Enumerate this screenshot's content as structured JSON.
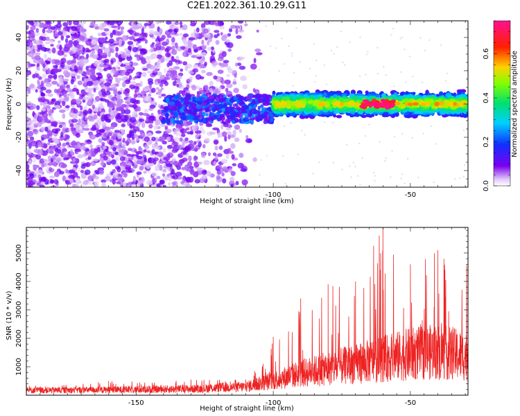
{
  "title": "C2E1.2022.361.10.29.G11",
  "chart_data": [
    {
      "type": "heatmap",
      "xlabel": "Height of straight line (km)",
      "ylabel": "Frequency (Hz)",
      "xlim": [
        -190,
        -29
      ],
      "ylim": [
        -50,
        50
      ],
      "x_ticks": [
        -150,
        -100,
        -50
      ],
      "y_ticks": [
        -40,
        -20,
        0,
        20,
        40
      ],
      "colorbar": {
        "label": "Normalized spectral amplitude",
        "range": [
          0.0,
          0.75
        ],
        "ticks": [
          0.0,
          0.2,
          0.4,
          0.6
        ],
        "colormap": "rainbow (purple -> blue -> cyan -> green -> yellow -> red -> magenta)"
      },
      "regions": [
        {
          "x_range": [
            -190,
            -105
          ],
          "description": "scattered noise speckle across all frequencies",
          "amplitude": 0.05
        },
        {
          "x_range": [
            -140,
            -100
          ],
          "description": "signal band near 0 Hz emerging",
          "freq_center_hz": -3,
          "amplitude": 0.15
        },
        {
          "x_range": [
            -100,
            -29
          ],
          "description": "strong signal band centered near 0 Hz, about ±5 Hz wide",
          "freq_center_hz": 0,
          "amplitude": 0.35,
          "peak_amplitude": 0.75,
          "peak_x": -62
        }
      ],
      "grid": false
    },
    {
      "type": "line",
      "xlabel": "Height of straight line (km)",
      "ylabel": "SNR (10 * v/v)",
      "xlim": [
        -190,
        -29
      ],
      "ylim": [
        0,
        5900
      ],
      "x_ticks": [
        -150,
        -100,
        -50
      ],
      "y_ticks": [
        1000,
        2000,
        3000,
        4000,
        5000
      ],
      "color": "#ee2222",
      "envelope": [
        {
          "x": -190,
          "y_typical": 200,
          "y_max": 320
        },
        {
          "x": -160,
          "y_typical": 220,
          "y_max": 500
        },
        {
          "x": -130,
          "y_typical": 260,
          "y_max": 550
        },
        {
          "x": -110,
          "y_typical": 350,
          "y_max": 550
        },
        {
          "x": -100,
          "y_typical": 600,
          "y_max": 2050
        },
        {
          "x": -90,
          "y_typical": 900,
          "y_max": 3400
        },
        {
          "x": -80,
          "y_typical": 1100,
          "y_max": 3900
        },
        {
          "x": -70,
          "y_typical": 1300,
          "y_max": 4000
        },
        {
          "x": -60,
          "y_typical": 1500,
          "y_max": 5900
        },
        {
          "x": -50,
          "y_typical": 1700,
          "y_max": 4600
        },
        {
          "x": -40,
          "y_typical": 1800,
          "y_max": 5100
        },
        {
          "x": -29,
          "y_typical": 1600,
          "y_max": 4700
        }
      ],
      "grid": false
    }
  ]
}
